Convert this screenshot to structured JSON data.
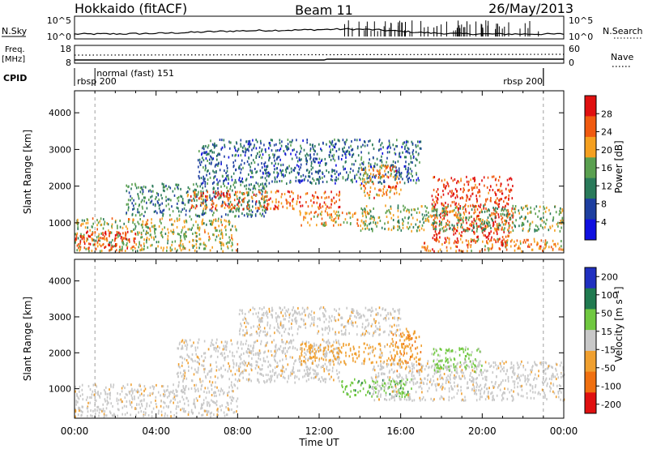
{
  "header": {
    "radar": "Hokkaido (fitACF)",
    "beam": "Beam 11",
    "date": "26/May/2013"
  },
  "top_panels": {
    "nsky_label": "N.Sky",
    "nsky_ticks": [
      "10^5",
      "10^0"
    ],
    "nsearch_label": "N.Search",
    "freq_label": "Freq.",
    "freq_unit": "[MHz]",
    "freq_ticks": [
      "18",
      "8"
    ],
    "nave_label": "Nave",
    "nave_ticks": [
      "60",
      "0"
    ],
    "cpid_label": "CPID",
    "cpid_segments": [
      {
        "text": "rbsp 200",
        "start_h": 0,
        "end_h": 1
      },
      {
        "text": "normal (fast) 151",
        "start_h": 1,
        "end_h": 23
      },
      {
        "text": "rbsp 200",
        "start_h": 23,
        "end_h": 24
      }
    ]
  },
  "chart_data": [
    {
      "type": "heatmap",
      "name": "Power",
      "x_unit": "hours UT",
      "xlim": [
        0,
        24
      ],
      "ylim": [
        180,
        4600
      ],
      "ylabel": "Slant Range [km]",
      "yticks": [
        1000,
        2000,
        3000,
        4000
      ],
      "colorbar": {
        "label": "Power [dB]",
        "ticks": [
          "28",
          "24",
          "20",
          "16",
          "12",
          "8",
          "4"
        ],
        "colors": [
          "#e01010",
          "#f05a10",
          "#f5a020",
          "#5aa050",
          "#2a7a5a",
          "#1e3fa0",
          "#1010e0"
        ]
      },
      "regions": [
        {
          "x0": 0.0,
          "x1": 8.0,
          "y0": 250,
          "y1": 1150,
          "level": 18
        },
        {
          "x0": 2.5,
          "x1": 9.5,
          "y0": 1200,
          "y1": 2100,
          "level": 12
        },
        {
          "x0": 5.5,
          "x1": 13.0,
          "y0": 1400,
          "y1": 1900,
          "level": 24
        },
        {
          "x0": 6.0,
          "x1": 17.0,
          "y0": 2100,
          "y1": 3300,
          "level": 10
        },
        {
          "x0": 11.0,
          "x1": 14.5,
          "y0": 950,
          "y1": 1350,
          "level": 20
        },
        {
          "x0": 14.0,
          "x1": 16.0,
          "y0": 1700,
          "y1": 2600,
          "level": 22
        },
        {
          "x0": 17.5,
          "x1": 21.5,
          "y0": 500,
          "y1": 2300,
          "level": 26
        },
        {
          "x0": 14.0,
          "x1": 24.0,
          "y0": 800,
          "y1": 1500,
          "level": 16
        },
        {
          "x0": 17.0,
          "x1": 24.0,
          "y0": 250,
          "y1": 600,
          "level": 22
        },
        {
          "x0": 0.0,
          "x1": 3.0,
          "y0": 300,
          "y1": 800,
          "level": 26
        }
      ]
    },
    {
      "type": "heatmap",
      "name": "Velocity",
      "x_unit": "hours UT",
      "xlim": [
        0,
        24
      ],
      "ylim": [
        180,
        4600
      ],
      "xlabel": "Time UT",
      "ylabel": "Slant Range [km]",
      "xticks": [
        "00:00",
        "04:00",
        "08:00",
        "12:00",
        "16:00",
        "20:00",
        "00:00"
      ],
      "yticks": [
        1000,
        2000,
        3000,
        4000
      ],
      "colorbar": {
        "label": "Velocity [m s⁻¹]",
        "ticks": [
          "200",
          "100",
          "50",
          "15",
          "-15",
          "-50",
          "-100",
          "-200"
        ],
        "colors": [
          "#2030c0",
          "#207a50",
          "#70c840",
          "#c8c8c8",
          "#f0a030",
          "#f07010",
          "#e01010"
        ]
      },
      "regions": [
        {
          "x0": 0.0,
          "x1": 8.0,
          "y0": 250,
          "y1": 1150,
          "value": 0
        },
        {
          "x0": 5.0,
          "x1": 13.0,
          "y0": 1200,
          "y1": 2400,
          "value": 0
        },
        {
          "x0": 11.0,
          "x1": 16.0,
          "y0": 1700,
          "y1": 2300,
          "value": -30
        },
        {
          "x0": 13.0,
          "x1": 16.5,
          "y0": 800,
          "y1": 1300,
          "value": 60
        },
        {
          "x0": 14.5,
          "x1": 24.0,
          "y0": 700,
          "y1": 1800,
          "value": 0
        },
        {
          "x0": 17.5,
          "x1": 20.0,
          "y0": 1500,
          "y1": 2200,
          "value": 40
        },
        {
          "x0": 8.0,
          "x1": 16.0,
          "y0": 2500,
          "y1": 3300,
          "value": 0
        },
        {
          "x0": 15.5,
          "x1": 17.0,
          "y0": 1500,
          "y1": 2700,
          "value": -40
        }
      ]
    }
  ]
}
